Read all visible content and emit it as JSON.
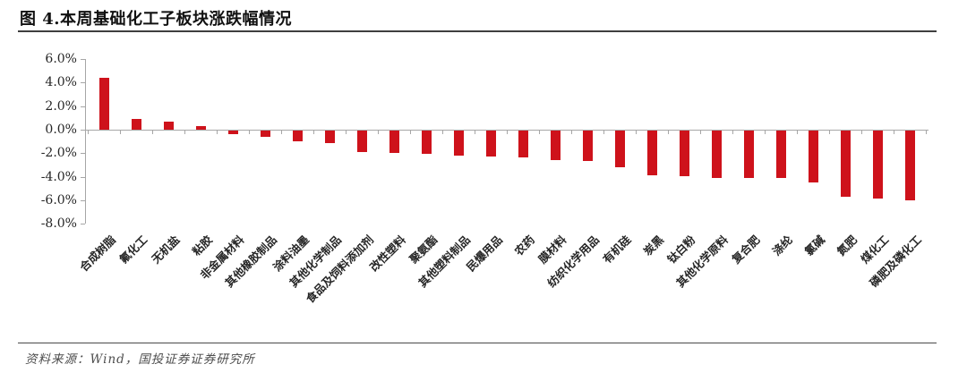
{
  "title": "图 4.本周基础化工子板块涨跌幅情况",
  "source": "资料来源：Wind，国投证券证券研究所",
  "colors": {
    "bar": "#ce121b",
    "axis": "#a6a6a6",
    "label_text": "#262626",
    "title_rule": "#3f3f3f"
  },
  "chart_data": {
    "type": "bar",
    "title": "本周基础化工子板块涨跌幅情况",
    "categories": [
      "合成树脂",
      "氟化工",
      "无机盐",
      "粘胶",
      "非金属材料",
      "其他橡胶制品",
      "涂料油墨",
      "其他化学制品",
      "食品及饲料添加剂",
      "改性塑料",
      "聚氨酯",
      "其他塑料制品",
      "民爆用品",
      "农药",
      "膜材料",
      "纺织化学用品",
      "有机硅",
      "炭黑",
      "钛白粉",
      "其他化学原料",
      "复合肥",
      "涤纶",
      "氯碱",
      "氮肥",
      "煤化工",
      "磷肥及磷化工"
    ],
    "values": [
      4.4,
      0.9,
      0.7,
      0.3,
      -0.3,
      -0.5,
      -0.9,
      -1.1,
      -1.8,
      -1.9,
      -2.0,
      -2.1,
      -2.2,
      -2.3,
      -2.5,
      -2.6,
      -3.1,
      -3.8,
      -3.9,
      -4.0,
      -4.0,
      -4.0,
      -4.4,
      -5.6,
      -5.8,
      -5.9
    ],
    "unit": "%",
    "y_ticks": [
      "6.0%",
      "4.0%",
      "2.0%",
      "0.0%",
      "-2.0%",
      "-4.0%",
      "-6.0%",
      "-8.0%"
    ],
    "ylim": [
      -8,
      6
    ],
    "y_tick_step": 2,
    "grid": false,
    "legend": false,
    "xlabel": "",
    "ylabel": ""
  }
}
